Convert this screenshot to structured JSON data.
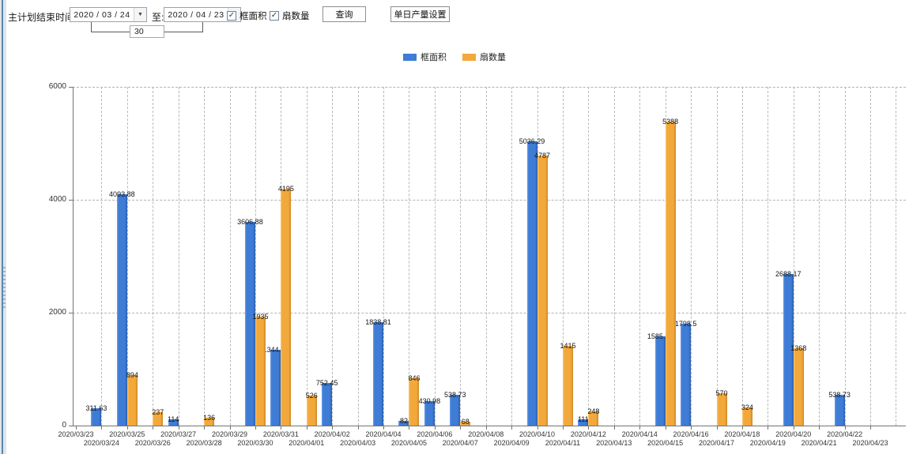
{
  "toolbar": {
    "plan_end_label": "主计划结束时间:",
    "date_from": "2020 / 03 / 24",
    "to_label": "至:",
    "date_to": "2020 / 04 / 23",
    "interval_days": "30",
    "checkbox_frame_area": "框面积",
    "checkbox_sash_count": "扇数量",
    "query_button": "查询",
    "daily_output_button": "单日产量设置",
    "dropdown_arrow": "▼",
    "check_glyph": "✓"
  },
  "chart_data": {
    "type": "bar",
    "title": "",
    "xlabel": "",
    "ylabel": "",
    "ylim": [
      0,
      6000
    ],
    "yticks": [
      0,
      2000,
      4000,
      6000
    ],
    "grid": "dashed",
    "legend_position": "top-center",
    "categories": [
      "2020/03/23",
      "2020/03/24",
      "2020/03/25",
      "2020/03/26",
      "2020/03/27",
      "2020/03/28",
      "2020/03/29",
      "2020/03/30",
      "2020/03/31",
      "2020/04/01",
      "2020/04/02",
      "2020/04/03",
      "2020/04/04",
      "2020/04/05",
      "2020/04/06",
      "2020/04/07",
      "2020/04/08",
      "2020/04/09",
      "2020/04/10",
      "2020/04/11",
      "2020/04/12",
      "2020/04/13",
      "2020/04/14",
      "2020/04/15",
      "2020/04/16",
      "2020/04/17",
      "2020/04/18",
      "2020/04/19",
      "2020/04/20",
      "2020/04/21",
      "2020/04/22",
      "2020/04/23"
    ],
    "series": [
      {
        "name": "框面积",
        "color": "#3e7cd6",
        "values": [
          null,
          311.63,
          4093.88,
          null,
          114,
          null,
          null,
          3606.88,
          1344.95,
          null,
          752.45,
          null,
          1838.81,
          82,
          430.98,
          538.73,
          null,
          null,
          5036.29,
          null,
          111,
          null,
          null,
          1585.96,
          1798.5,
          null,
          null,
          null,
          2688.17,
          null,
          538.73,
          null
        ]
      },
      {
        "name": "扇数量",
        "color": "#f2a83b",
        "values": [
          null,
          null,
          894,
          237,
          null,
          136,
          null,
          1935,
          4195,
          526,
          null,
          null,
          null,
          846,
          null,
          68,
          null,
          null,
          4787,
          1415,
          248,
          null,
          null,
          5388,
          null,
          570,
          324,
          null,
          1368,
          null,
          null,
          null
        ]
      }
    ]
  }
}
